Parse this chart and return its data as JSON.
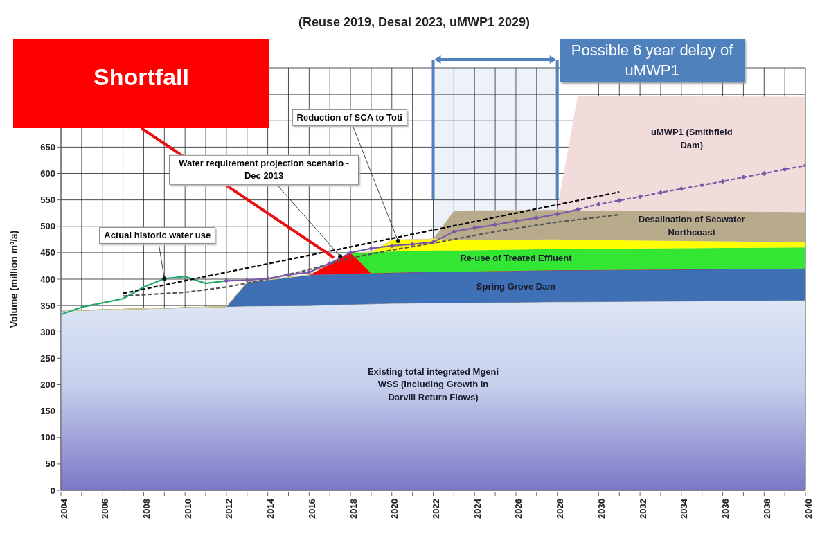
{
  "chart_data": {
    "type": "area",
    "title": "(Reuse 2019, Desal 2023, uMWP1 2029)",
    "ylabel": "Volume (million m³/a)",
    "stacked": true,
    "grid": true,
    "xlim": [
      2004,
      2040
    ],
    "xticks": [
      2004,
      {
        "value": 2005,
        "label": null
      },
      2006,
      {
        "value": 2007,
        "label": null
      },
      2008,
      {
        "value": 2009,
        "label": null
      },
      2010,
      {
        "value": 2011,
        "label": null
      },
      2012,
      {
        "value": 2013,
        "label": null
      },
      2014,
      {
        "value": 2015,
        "label": null
      },
      2016,
      {
        "value": 2017,
        "label": null
      },
      2018,
      {
        "value": 2019,
        "label": null
      },
      2020,
      {
        "value": 2021,
        "label": null
      },
      2022,
      {
        "value": 2023,
        "label": null
      },
      2024,
      {
        "value": 2025,
        "label": null
      },
      2026,
      {
        "value": 2027,
        "label": null
      },
      2028,
      {
        "value": 2029,
        "label": null
      },
      2030,
      {
        "value": 2031,
        "label": null
      },
      2032,
      {
        "value": 2033,
        "label": null
      },
      2034,
      {
        "value": 2035,
        "label": null
      },
      2036,
      {
        "value": 2037,
        "label": null
      },
      2038,
      {
        "value": 2039,
        "label": null
      },
      2040
    ],
    "ylim": [
      0,
      800
    ],
    "yticks": [
      0,
      50,
      100,
      150,
      200,
      250,
      300,
      350,
      400,
      450,
      500,
      550,
      600,
      650,
      {
        "value": 700,
        "label": null
      },
      {
        "value": 750,
        "label": null
      },
      {
        "value": 800,
        "label": null
      }
    ],
    "x": [
      2004,
      2012,
      2013,
      2016,
      2018,
      2019,
      2020,
      2022,
      2023,
      2028,
      2029,
      2040
    ],
    "series": [
      {
        "name": "Existing total integrated Mgeni WSS (Including Growth in Darvill Return Flows)",
        "color": "#7b77c6",
        "values": [
          340,
          348,
          349,
          350,
          352,
          353,
          354,
          355,
          355,
          357,
          357,
          360
        ]
      },
      {
        "name": "Spring Grove Dam",
        "color": "#3f6fb5",
        "values": [
          0,
          0,
          45,
          58,
          58,
          58,
          58,
          59,
          59,
          60,
          60,
          60
        ]
      },
      {
        "color": "#ff0000",
        "values": [
          0,
          0,
          0,
          0,
          40,
          0,
          0,
          0,
          0,
          0,
          0,
          0
        ]
      },
      {
        "name": "Re-use of Treated Effluent",
        "color": "#33e633",
        "values": [
          0,
          0,
          0,
          0,
          0,
          40,
          40,
          40,
          40,
          40,
          40,
          40
        ]
      },
      {
        "color": "#ffff00",
        "values": [
          0,
          0,
          0,
          0,
          0,
          0,
          22,
          22,
          20,
          18,
          17,
          10
        ]
      },
      {
        "name": "Desalination of Seawater Northcoast",
        "color": "#b8ab8c",
        "values": [
          0,
          0,
          0,
          0,
          0,
          0,
          0,
          0,
          55,
          56,
          56,
          57
        ]
      },
      {
        "name": "uMWP1 (Smithfield Dam)",
        "color": "#f2dcdb",
        "values": [
          0,
          0,
          0,
          0,
          0,
          0,
          0,
          0,
          0,
          0,
          217,
          218
        ]
      },
      {
        "type": "line",
        "color": "#1fa86a",
        "line_style": "solid",
        "x": [
          2004,
          2005,
          2006,
          2007,
          2008,
          2009,
          2010,
          2011,
          2012
        ],
        "values": [
          333,
          347,
          355,
          363,
          385,
          401,
          405,
          392,
          397
        ]
      },
      {
        "type": "line",
        "color": "#000000",
        "line_style": "dashed",
        "x": [
          2007,
          2031
        ],
        "values": [
          373,
          565
        ]
      },
      {
        "type": "line",
        "color": "#555555",
        "line_style": "dashed",
        "x": [
          2007,
          2010,
          2012,
          2014,
          2016,
          2018,
          2020,
          2022,
          2025,
          2028,
          2031
        ],
        "values": [
          368,
          375,
          385,
          400,
          418,
          440,
          455,
          468,
          490,
          508,
          522
        ]
      },
      {
        "type": "line",
        "color": "#7a58a8",
        "line_style": "solid",
        "marker": "diamond",
        "x": [
          2012,
          2013,
          2014,
          2015,
          2016,
          2017,
          2018,
          2019,
          2020,
          2021,
          2022,
          2023,
          2024,
          2025,
          2026,
          2027,
          2028,
          2029
        ],
        "values": [
          397,
          398,
          401,
          408,
          413,
          430,
          450,
          458,
          463,
          466,
          470,
          490,
          497,
          503,
          510,
          516,
          523,
          532
        ]
      },
      {
        "type": "line",
        "color": "#7a58a8",
        "line_style": "dashed",
        "marker": "diamond",
        "x": [
          2029,
          2030,
          2031,
          2032,
          2033,
          2034,
          2035,
          2036,
          2037,
          2038,
          2039,
          2040
        ],
        "values": [
          532,
          542,
          549,
          556,
          564,
          571,
          578,
          585,
          593,
          600,
          608,
          615
        ]
      }
    ],
    "bands": [
      {
        "axis": "x",
        "from": 2022,
        "to": 2028,
        "label": "Possible 6 year delay of uMWP1",
        "color": "#4f81bd"
      }
    ],
    "annotations": [
      {
        "text": "Actual historic water use",
        "x": 2009,
        "y": 401
      },
      {
        "text": "Water requirement projection scenario - Dec 2013",
        "x": 2017.5,
        "y": 443
      },
      {
        "text": "Reduction of SCA to Toti",
        "x": 2020.3,
        "y": 472
      },
      "Shortfall"
    ]
  }
}
